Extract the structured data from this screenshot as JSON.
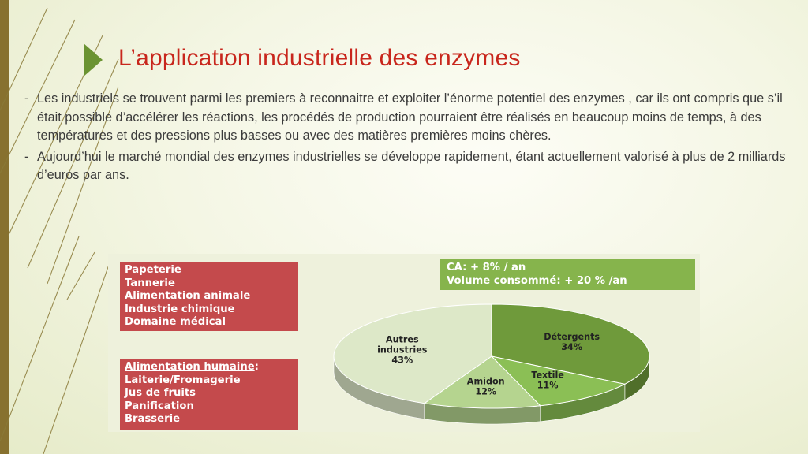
{
  "slide": {
    "title": "L’application industrielle des enzymes",
    "paragraphs": [
      {
        "dash": "-",
        "text": "Les industriels se trouvent parmi les premiers à reconnaitre et exploiter l’énorme potentiel des enzymes , car ils ont compris que s’il était possible d’accélérer  les réactions, les procédés de production pourraient être réalisés en beaucoup moins de temps, à des températures et des pressions plus basses ou avec des matières premières moins chères."
      },
      {
        "dash": "-",
        "text": "Aujourd’hui le marché mondial  des enzymes industrielles se développe rapidement, étant actuellement valorisé à plus de 2 milliards d’euros par ans."
      }
    ],
    "colors": {
      "title": "#c8261c",
      "accent_bar": "#87712f",
      "red_box": "#c44a4c",
      "green_box": "#86b44c"
    }
  },
  "figure": {
    "industry_box": [
      "Papeterie",
      "Tannerie",
      "Alimentation animale",
      "Industrie chimique",
      "Domaine médical"
    ],
    "food_box": {
      "heading": "Alimentation humaine",
      "heading_suffix": ":",
      "items": [
        "Laiterie/Fromagerie",
        "Jus de fruits",
        "Panification",
        "Brasserie"
      ]
    },
    "growth_box": [
      "CA: + 8% / an",
      "Volume consommé: + 20 % /an"
    ]
  },
  "chart_data": {
    "type": "pie",
    "title": "",
    "slices": [
      {
        "label": "Détergents",
        "value": 34,
        "display": "34%",
        "color": "#6f9a3b"
      },
      {
        "label": "Textile",
        "value": 11,
        "display": "11%",
        "color": "#8bbf55"
      },
      {
        "label": "Amidon",
        "value": 12,
        "display": "12%",
        "color": "#b5d48f"
      },
      {
        "label": "Autres industries",
        "value": 43,
        "display": "43%",
        "color": "#dde8c8"
      }
    ]
  }
}
